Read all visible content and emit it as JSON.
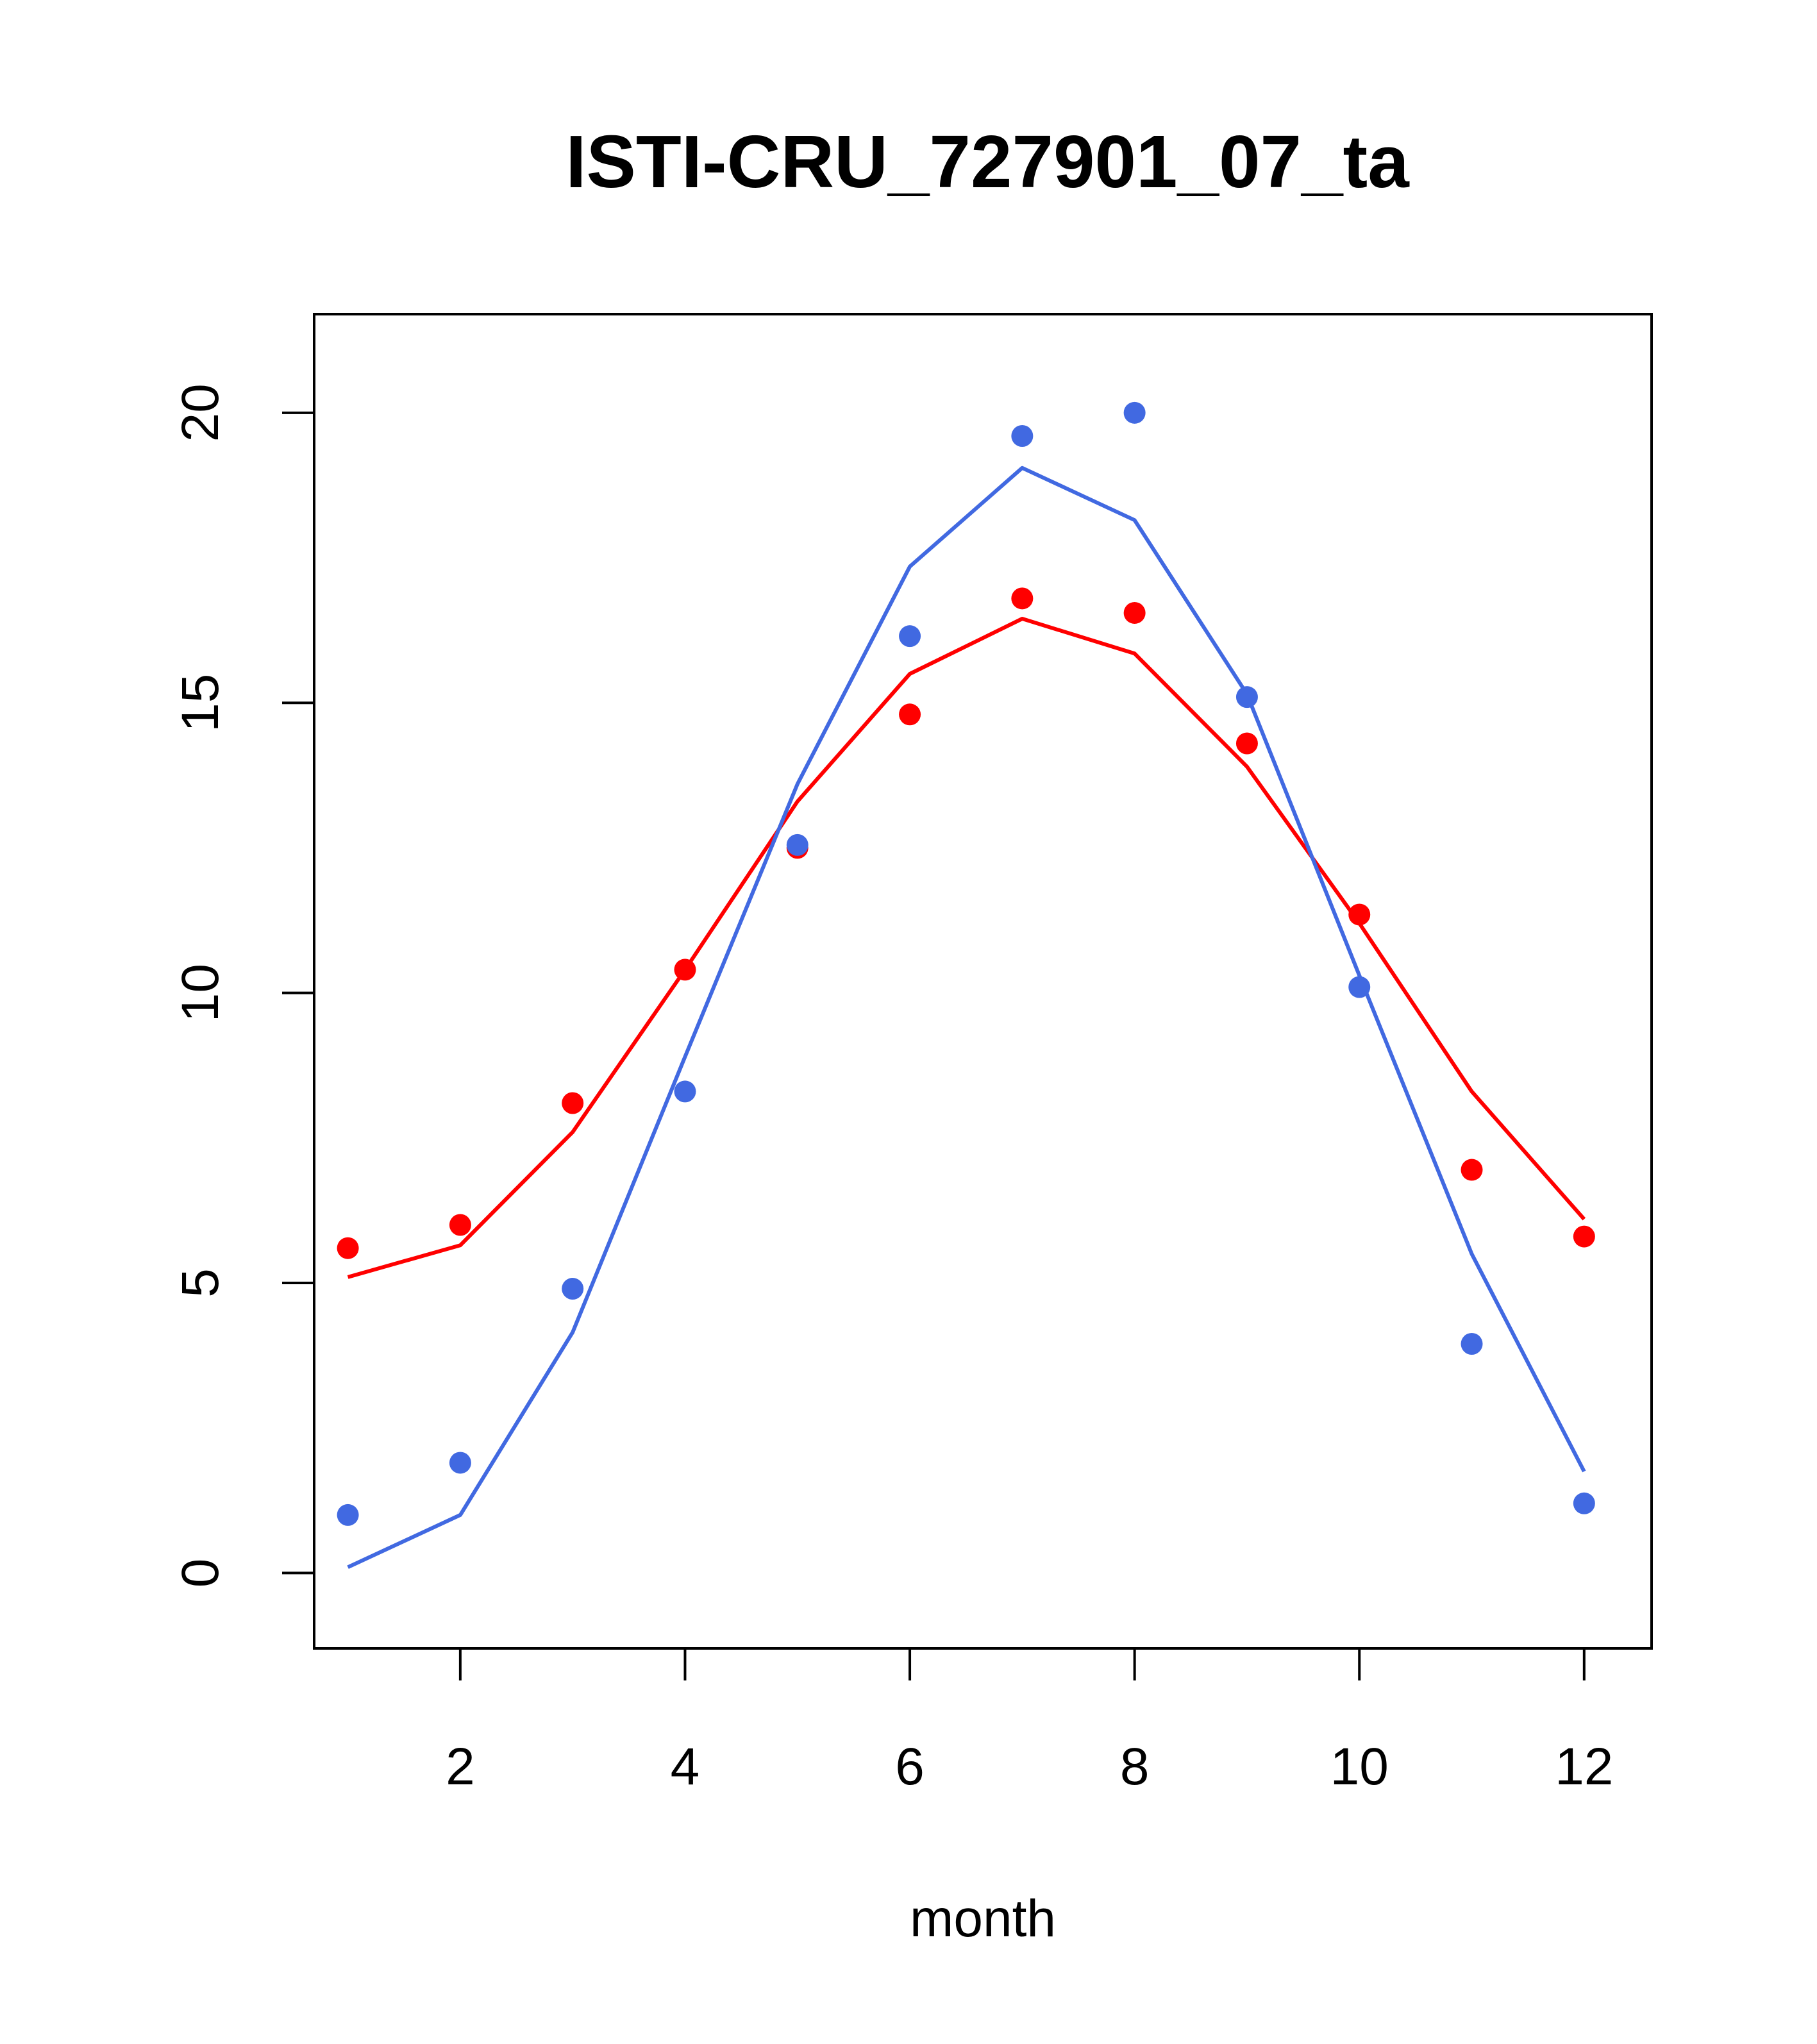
{
  "chart_data": {
    "type": "scatter",
    "title": "ISTI-CRU_727901_07_ta",
    "xlabel": "month",
    "ylabel": "",
    "xlim": [
      0.7,
      12.6
    ],
    "ylim": [
      -1.3,
      21.7
    ],
    "x_ticks": [
      2,
      4,
      6,
      8,
      10,
      12
    ],
    "y_ticks": [
      0,
      5,
      10,
      15,
      20
    ],
    "grid": false,
    "legend": "none",
    "x": [
      1,
      2,
      3,
      4,
      5,
      6,
      7,
      8,
      9,
      10,
      11,
      12
    ],
    "series": [
      {
        "color": "#ff0000",
        "points": [
          5.6,
          6.0,
          8.1,
          10.4,
          12.5,
          14.8,
          16.8,
          16.55,
          14.3,
          11.35,
          6.95,
          5.8
        ],
        "line": [
          5.1,
          5.65,
          7.6,
          10.4,
          13.3,
          15.5,
          16.45,
          15.85,
          13.9,
          11.2,
          8.3,
          6.1
        ]
      },
      {
        "color": "#4169e1",
        "points": [
          1.0,
          1.9,
          4.9,
          8.3,
          12.55,
          16.15,
          19.6,
          20.0,
          15.1,
          10.1,
          3.95,
          1.2
        ],
        "line": [
          0.1,
          1.0,
          4.15,
          8.9,
          13.6,
          17.35,
          19.05,
          18.15,
          15.15,
          10.3,
          5.5,
          1.75
        ]
      }
    ]
  }
}
